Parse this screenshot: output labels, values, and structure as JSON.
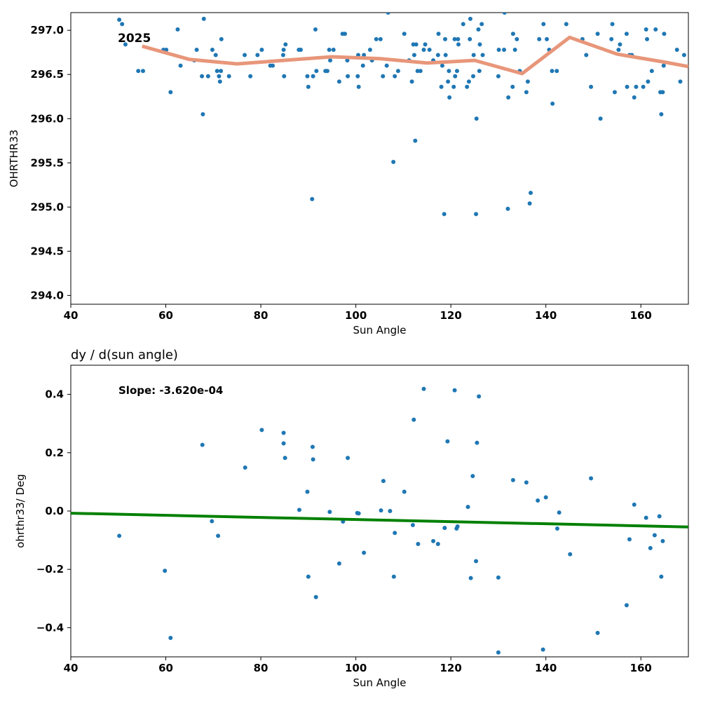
{
  "chart_data": [
    {
      "type": "scatter",
      "title": "",
      "xlabel": "Sun Angle",
      "ylabel": "OHRTHR33",
      "xlim": [
        40,
        170
      ],
      "ylim": [
        293.9,
        297.2
      ],
      "xticks": [
        40,
        60,
        80,
        100,
        120,
        140,
        160
      ],
      "yticks": [
        294.0,
        294.5,
        295.0,
        295.5,
        296.0,
        296.5,
        297.0
      ],
      "grid": false,
      "annotation": "2025",
      "colors": {
        "points": "#1f77b4",
        "trend": "#e8967a"
      },
      "series": [
        {
          "kind": "scatter",
          "points": [
            [
              50.2,
              297.12
            ],
            [
              50.8,
              297.07
            ],
            [
              51.5,
              296.84
            ],
            [
              54.2,
              296.54
            ],
            [
              55.2,
              296.54
            ],
            [
              59.5,
              296.78
            ],
            [
              60.1,
              296.78
            ],
            [
              61.0,
              296.3
            ],
            [
              62.5,
              297.01
            ],
            [
              63.1,
              296.6
            ],
            [
              66.0,
              296.66
            ],
            [
              66.5,
              296.78
            ],
            [
              67.6,
              296.48
            ],
            [
              67.8,
              296.05
            ],
            [
              68.0,
              297.13
            ],
            [
              68.9,
              296.48
            ],
            [
              69.8,
              296.78
            ],
            [
              70.5,
              296.72
            ],
            [
              70.8,
              296.54
            ],
            [
              71.2,
              296.48
            ],
            [
              71.4,
              296.42
            ],
            [
              71.6,
              296.54
            ],
            [
              71.7,
              296.9
            ],
            [
              73.3,
              296.48
            ],
            [
              76.6,
              296.72
            ],
            [
              77.8,
              296.48
            ],
            [
              79.3,
              296.72
            ],
            [
              80.2,
              296.78
            ],
            [
              82.0,
              296.6
            ],
            [
              82.5,
              296.6
            ],
            [
              84.7,
              296.72
            ],
            [
              84.8,
              296.78
            ],
            [
              84.9,
              296.48
            ],
            [
              85.2,
              296.84
            ],
            [
              88.0,
              296.78
            ],
            [
              88.4,
              296.78
            ],
            [
              89.8,
              296.48
            ],
            [
              90.0,
              296.36
            ],
            [
              90.8,
              295.09
            ],
            [
              91.0,
              296.48
            ],
            [
              91.5,
              297.01
            ],
            [
              91.7,
              296.54
            ],
            [
              93.6,
              296.54
            ],
            [
              94.0,
              296.54
            ],
            [
              94.4,
              296.78
            ],
            [
              94.6,
              296.66
            ],
            [
              95.3,
              296.78
            ],
            [
              96.5,
              296.42
            ],
            [
              97.2,
              296.96
            ],
            [
              97.7,
              296.96
            ],
            [
              98.2,
              296.66
            ],
            [
              98.3,
              296.48
            ],
            [
              100.4,
              296.48
            ],
            [
              100.5,
              296.72
            ],
            [
              100.6,
              296.36
            ],
            [
              101.5,
              296.6
            ],
            [
              101.7,
              296.72
            ],
            [
              103.0,
              296.78
            ],
            [
              103.4,
              296.66
            ],
            [
              104.3,
              296.9
            ],
            [
              105.2,
              296.9
            ],
            [
              105.7,
              296.48
            ],
            [
              106.5,
              296.6
            ],
            [
              106.8,
              297.2
            ],
            [
              107.9,
              295.51
            ],
            [
              108.2,
              296.48
            ],
            [
              108.9,
              296.54
            ],
            [
              110.2,
              296.96
            ],
            [
              111.2,
              296.66
            ],
            [
              111.8,
              296.42
            ],
            [
              112.1,
              296.84
            ],
            [
              112.3,
              296.72
            ],
            [
              112.5,
              295.75
            ],
            [
              112.7,
              296.84
            ],
            [
              113.0,
              296.54
            ],
            [
              113.6,
              296.54
            ],
            [
              114.3,
              296.78
            ],
            [
              114.6,
              296.84
            ],
            [
              115.5,
              296.78
            ],
            [
              116.3,
              296.66
            ],
            [
              117.3,
              296.72
            ],
            [
              117.4,
              296.96
            ],
            [
              118.0,
              296.36
            ],
            [
              118.2,
              296.6
            ],
            [
              118.6,
              294.92
            ],
            [
              118.8,
              296.9
            ],
            [
              118.9,
              296.72
            ],
            [
              119.4,
              296.42
            ],
            [
              119.6,
              296.54
            ],
            [
              119.7,
              296.24
            ],
            [
              120.6,
              296.36
            ],
            [
              120.8,
              296.9
            ],
            [
              120.9,
              296.48
            ],
            [
              121.3,
              296.54
            ],
            [
              121.5,
              296.9
            ],
            [
              121.6,
              296.84
            ],
            [
              122.6,
              297.07
            ],
            [
              123.4,
              296.36
            ],
            [
              123.8,
              296.42
            ],
            [
              124.0,
              296.9
            ],
            [
              124.1,
              297.13
            ],
            [
              124.7,
              296.48
            ],
            [
              124.8,
              296.72
            ],
            [
              125.3,
              294.92
            ],
            [
              125.4,
              296.0
            ],
            [
              125.8,
              297.01
            ],
            [
              126.0,
              296.54
            ],
            [
              126.1,
              296.84
            ],
            [
              126.5,
              297.07
            ],
            [
              126.7,
              296.72
            ],
            [
              130.0,
              296.48
            ],
            [
              130.1,
              296.78
            ],
            [
              131.2,
              296.78
            ],
            [
              131.3,
              297.2
            ],
            [
              132.0,
              294.98
            ],
            [
              132.1,
              296.24
            ],
            [
              133.0,
              296.36
            ],
            [
              133.1,
              296.96
            ],
            [
              133.5,
              296.78
            ],
            [
              133.9,
              296.9
            ],
            [
              134.5,
              296.54
            ],
            [
              135.9,
              296.3
            ],
            [
              136.2,
              296.42
            ],
            [
              136.6,
              295.04
            ],
            [
              136.8,
              295.16
            ],
            [
              138.6,
              296.9
            ],
            [
              139.5,
              297.07
            ],
            [
              140.2,
              296.9
            ],
            [
              140.7,
              296.78
            ],
            [
              141.3,
              296.54
            ],
            [
              141.4,
              296.17
            ],
            [
              142.3,
              296.54
            ],
            [
              144.3,
              297.07
            ],
            [
              147.7,
              296.9
            ],
            [
              148.5,
              296.72
            ],
            [
              149.5,
              296.36
            ],
            [
              150.9,
              296.96
            ],
            [
              151.5,
              296.0
            ],
            [
              153.8,
              296.9
            ],
            [
              154.0,
              297.07
            ],
            [
              154.5,
              296.3
            ],
            [
              155.3,
              296.78
            ],
            [
              155.6,
              296.84
            ],
            [
              157.0,
              296.96
            ],
            [
              157.1,
              296.36
            ],
            [
              157.6,
              296.72
            ],
            [
              158.1,
              296.72
            ],
            [
              158.6,
              296.24
            ],
            [
              159.0,
              296.36
            ],
            [
              160.5,
              296.36
            ],
            [
              161.1,
              297.01
            ],
            [
              161.3,
              296.9
            ],
            [
              161.5,
              296.42
            ],
            [
              162.3,
              296.54
            ],
            [
              163.1,
              297.01
            ],
            [
              164.1,
              296.3
            ],
            [
              164.3,
              296.05
            ],
            [
              164.6,
              296.3
            ],
            [
              164.8,
              296.6
            ],
            [
              164.9,
              296.96
            ],
            [
              167.6,
              296.78
            ],
            [
              168.3,
              296.42
            ],
            [
              169.1,
              296.72
            ]
          ]
        },
        {
          "kind": "line",
          "points": [
            [
              55,
              296.82
            ],
            [
              65,
              296.67
            ],
            [
              75,
              296.62
            ],
            [
              95,
              296.7
            ],
            [
              105,
              296.68
            ],
            [
              115,
              296.63
            ],
            [
              125,
              296.66
            ],
            [
              135,
              296.51
            ],
            [
              145,
              296.92
            ],
            [
              155,
              296.73
            ],
            [
              165,
              296.64
            ],
            [
              170,
              296.59
            ]
          ]
        }
      ]
    },
    {
      "type": "scatter",
      "title": "dy / d(sun angle)",
      "xlabel": "Sun Angle",
      "ylabel": "ohrthr33/ Deg",
      "xlim": [
        40,
        170
      ],
      "ylim": [
        -0.5,
        0.5
      ],
      "xticks": [
        40,
        60,
        80,
        100,
        120,
        140,
        160
      ],
      "yticks": [
        -0.4,
        -0.2,
        0.0,
        0.2,
        0.4
      ],
      "grid": false,
      "annotation": "Slope: -3.620e-04",
      "colors": {
        "points": "#1f77b4",
        "fit": "#008000"
      },
      "series": [
        {
          "kind": "scatter",
          "points": [
            [
              50.2,
              -0.085
            ],
            [
              59.8,
              -0.205
            ],
            [
              61.0,
              -0.435
            ],
            [
              67.7,
              0.227
            ],
            [
              69.7,
              -0.035
            ],
            [
              71.0,
              -0.085
            ],
            [
              76.7,
              0.149
            ],
            [
              80.2,
              0.278
            ],
            [
              84.8,
              0.268
            ],
            [
              84.8,
              0.232
            ],
            [
              85.1,
              0.182
            ],
            [
              88.1,
              0.004
            ],
            [
              89.8,
              0.066
            ],
            [
              90.0,
              -0.225
            ],
            [
              90.9,
              0.22
            ],
            [
              91.0,
              0.177
            ],
            [
              91.6,
              -0.295
            ],
            [
              94.5,
              -0.003
            ],
            [
              96.5,
              -0.18
            ],
            [
              97.3,
              -0.036
            ],
            [
              98.3,
              0.182
            ],
            [
              100.3,
              -0.007
            ],
            [
              100.6,
              -0.008
            ],
            [
              101.7,
              -0.143
            ],
            [
              105.3,
              0.002
            ],
            [
              105.8,
              0.103
            ],
            [
              107.2,
              0.0
            ],
            [
              108.0,
              -0.225
            ],
            [
              108.2,
              -0.075
            ],
            [
              110.2,
              0.066
            ],
            [
              112.0,
              -0.048
            ],
            [
              112.2,
              0.313
            ],
            [
              113.1,
              -0.113
            ],
            [
              114.3,
              0.419
            ],
            [
              116.3,
              -0.103
            ],
            [
              117.3,
              -0.113
            ],
            [
              118.7,
              -0.058
            ],
            [
              119.3,
              0.239
            ],
            [
              120.8,
              0.414
            ],
            [
              121.2,
              -0.06
            ],
            [
              121.4,
              -0.053
            ],
            [
              123.6,
              0.014
            ],
            [
              124.2,
              -0.23
            ],
            [
              124.6,
              0.12
            ],
            [
              125.3,
              -0.172
            ],
            [
              125.5,
              0.234
            ],
            [
              125.9,
              0.393
            ],
            [
              130.0,
              -0.228
            ],
            [
              130.0,
              -0.485
            ],
            [
              133.1,
              0.106
            ],
            [
              135.9,
              0.098
            ],
            [
              138.3,
              0.036
            ],
            [
              139.4,
              -0.475
            ],
            [
              140.0,
              0.047
            ],
            [
              142.4,
              -0.06
            ],
            [
              142.8,
              -0.005
            ],
            [
              145.1,
              -0.148
            ],
            [
              149.5,
              0.112
            ],
            [
              150.9,
              -0.418
            ],
            [
              157.0,
              -0.323
            ],
            [
              157.6,
              -0.097
            ],
            [
              158.6,
              0.022
            ],
            [
              161.1,
              -0.023
            ],
            [
              162.0,
              -0.127
            ],
            [
              162.9,
              -0.083
            ],
            [
              163.9,
              -0.018
            ],
            [
              164.3,
              -0.225
            ],
            [
              164.6,
              -0.103
            ]
          ]
        },
        {
          "kind": "line",
          "points": [
            [
              40,
              -0.0075
            ],
            [
              170,
              -0.0545
            ]
          ]
        }
      ]
    }
  ]
}
